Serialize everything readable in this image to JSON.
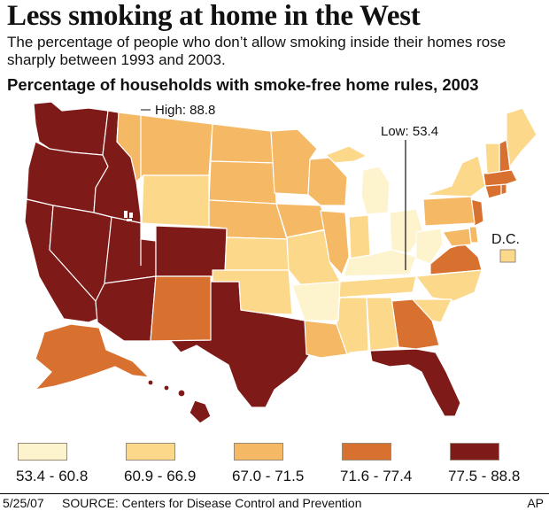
{
  "title": "Less smoking at home in the West",
  "subtitle": "The percentage of people who don’t allow smoking inside their homes rose sharply between 1993 and 2003.",
  "map_heading": "Percentage of households with smoke-free home rules, 2003",
  "high_label": "High: 88.8",
  "low_label": "Low: 53.4",
  "dc_label": "D.C.",
  "legend": [
    {
      "label": "53.4 - 60.8",
      "color": "#fdf3cc"
    },
    {
      "label": "60.9 - 66.9",
      "color": "#fbd88a"
    },
    {
      "label": "67.0 - 71.5",
      "color": "#f5b865"
    },
    {
      "label": "71.6 - 77.4",
      "color": "#d8702f"
    },
    {
      "label": "77.5 - 88.8",
      "color": "#7e1a17"
    }
  ],
  "footer": {
    "date": "5/25/07",
    "source": "SOURCE: Centers for Disease Control and Prevention",
    "credit": "AP"
  }
}
